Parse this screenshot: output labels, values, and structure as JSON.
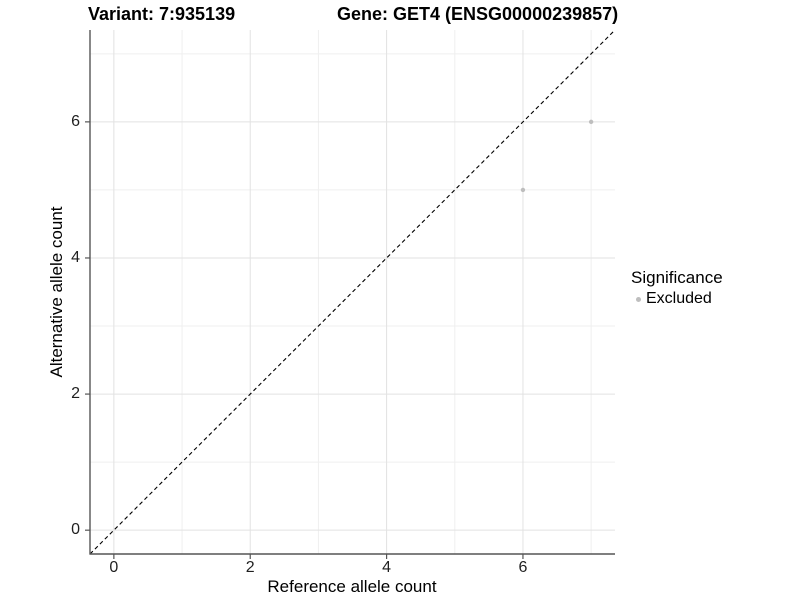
{
  "figure": {
    "title_left": "Variant: 7:935139",
    "title_right": "Gene: GET4 (ENSG00000239857)"
  },
  "chart_data": {
    "type": "scatter",
    "title": "Variant: 7:935139  /  Gene: GET4 (ENSG00000239857)",
    "xlabel": "Reference allele count",
    "ylabel": "Alternative allele count",
    "xlim": [
      -0.35,
      7.35
    ],
    "ylim": [
      -0.35,
      7.35
    ],
    "x_ticks": [
      0,
      2,
      4,
      6
    ],
    "y_ticks": [
      0,
      2,
      4,
      6
    ],
    "x_minor_ticks": [
      1,
      3,
      5,
      7
    ],
    "y_minor_ticks": [
      1,
      3,
      5,
      7
    ],
    "grid": true,
    "legend_position": "right",
    "series": [
      {
        "name": "Excluded",
        "color": "#bebebe",
        "points": [
          {
            "x": 6,
            "y": 5
          },
          {
            "x": 7,
            "y": 6
          }
        ]
      }
    ],
    "reference_line": {
      "type": "identity y=x",
      "style": "dashed",
      "color": "#000000"
    }
  },
  "legend": {
    "title": "Significance",
    "entries": [
      {
        "label": "Excluded",
        "color": "#bebebe"
      }
    ]
  },
  "colors": {
    "background": "#ffffff",
    "grid_major": "#e2e2e2",
    "grid_minor": "#efefef",
    "axis_line": "#555555",
    "tick_mark": "#555555",
    "point": "#bebebe",
    "dashed_line": "#000000"
  }
}
